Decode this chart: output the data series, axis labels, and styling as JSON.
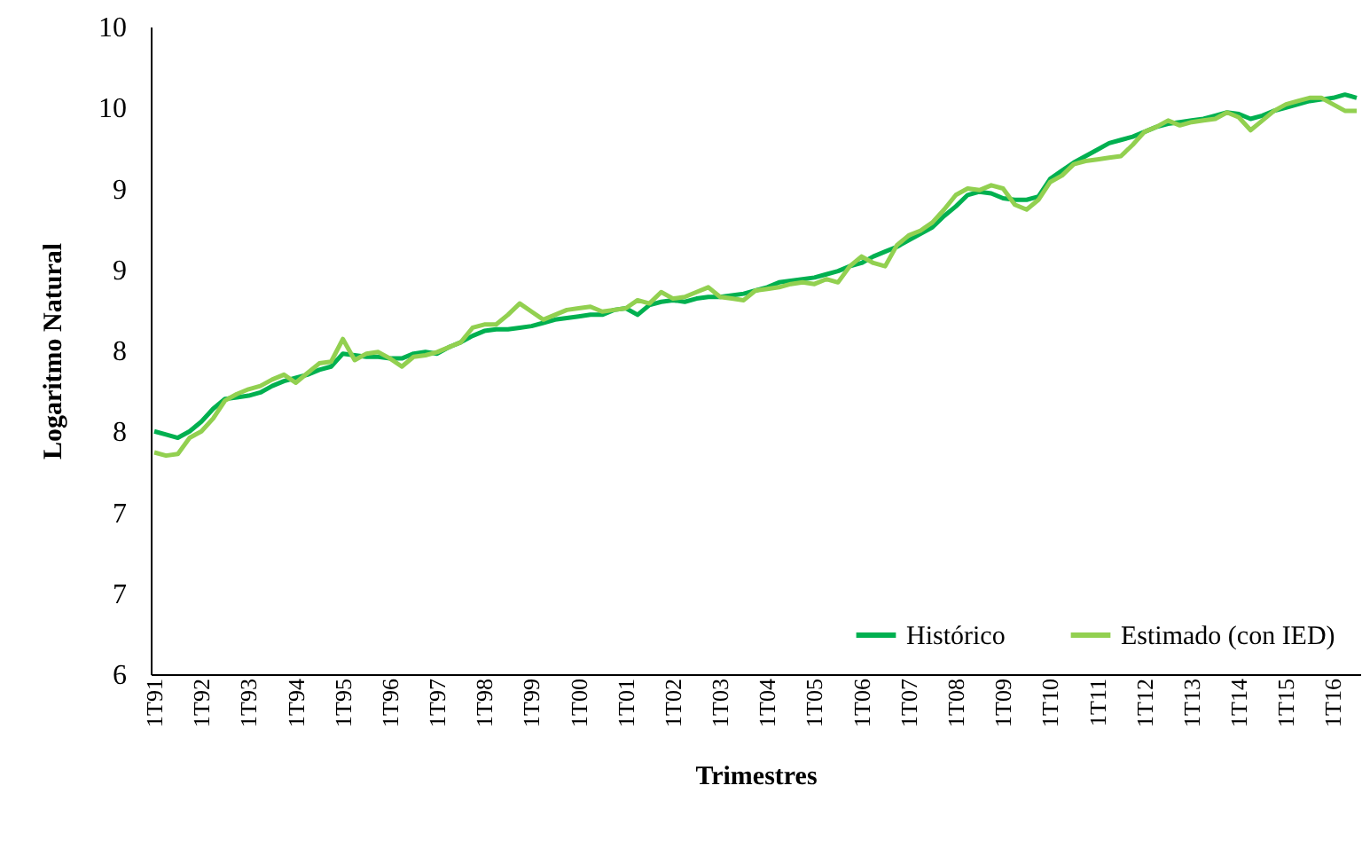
{
  "chart_data": {
    "type": "line",
    "xlabel": "Trimestres",
    "ylabel": "Logaritmo Natural",
    "categories": [
      "1T91",
      null,
      null,
      null,
      "1T92",
      null,
      null,
      null,
      "1T93",
      null,
      null,
      null,
      "1T94",
      null,
      null,
      null,
      "1T95",
      null,
      null,
      null,
      "1T96",
      null,
      null,
      null,
      "1T97",
      null,
      null,
      null,
      "1T98",
      null,
      null,
      null,
      "1T99",
      null,
      null,
      null,
      "1T00",
      null,
      null,
      null,
      "1T01",
      null,
      null,
      null,
      "1T02",
      null,
      null,
      null,
      "1T03",
      null,
      null,
      null,
      "1T04",
      null,
      null,
      null,
      "1T05",
      null,
      null,
      null,
      "1T06",
      null,
      null,
      null,
      "1T07",
      null,
      null,
      null,
      "1T08",
      null,
      null,
      null,
      "1T09",
      null,
      null,
      null,
      "1T10",
      null,
      null,
      null,
      "1T11",
      null,
      null,
      null,
      "1T12",
      null,
      null,
      null,
      "1T13",
      null,
      null,
      null,
      "1T14",
      null,
      null,
      null,
      "1T15",
      null,
      null,
      null,
      "1T16",
      null,
      null
    ],
    "series": [
      {
        "name": "Histórico",
        "color": "#00b050",
        "values": [
          7.5,
          7.48,
          7.46,
          7.5,
          7.56,
          7.64,
          7.7,
          7.71,
          7.72,
          7.74,
          7.78,
          7.81,
          7.83,
          7.85,
          7.88,
          7.9,
          7.98,
          7.97,
          7.96,
          7.96,
          7.95,
          7.95,
          7.98,
          7.99,
          7.98,
          8.02,
          8.05,
          8.09,
          8.12,
          8.13,
          8.13,
          8.14,
          8.15,
          8.17,
          8.19,
          8.2,
          8.21,
          8.22,
          8.22,
          8.25,
          8.26,
          8.22,
          8.28,
          8.3,
          8.31,
          8.3,
          8.32,
          8.33,
          8.33,
          8.34,
          8.35,
          8.37,
          8.39,
          8.42,
          8.43,
          8.44,
          8.45,
          8.47,
          8.49,
          8.52,
          8.54,
          8.58,
          8.61,
          8.64,
          8.68,
          8.72,
          8.76,
          8.83,
          8.89,
          8.96,
          8.98,
          8.97,
          8.94,
          8.93,
          8.93,
          8.95,
          9.06,
          9.11,
          9.16,
          9.2,
          9.24,
          9.28,
          9.3,
          9.32,
          9.35,
          9.38,
          9.4,
          9.41,
          9.42,
          9.43,
          9.45,
          9.47,
          9.46,
          9.43,
          9.45,
          9.48,
          9.5,
          9.52,
          9.54,
          9.55,
          9.56,
          9.58,
          9.56
        ]
      },
      {
        "name": "Estimado (con IED)",
        "color": "#92d050",
        "values": [
          7.37,
          7.35,
          7.36,
          7.46,
          7.5,
          7.58,
          7.69,
          7.73,
          7.76,
          7.78,
          7.82,
          7.85,
          7.8,
          7.86,
          7.92,
          7.93,
          8.07,
          7.94,
          7.98,
          7.99,
          7.95,
          7.9,
          7.96,
          7.97,
          7.99,
          8.02,
          8.05,
          8.14,
          8.16,
          8.16,
          8.22,
          8.29,
          8.24,
          8.19,
          8.22,
          8.25,
          8.26,
          8.27,
          8.24,
          8.25,
          8.26,
          8.31,
          8.29,
          8.36,
          8.32,
          8.33,
          8.36,
          8.39,
          8.33,
          8.32,
          8.31,
          8.37,
          8.38,
          8.39,
          8.41,
          8.42,
          8.41,
          8.44,
          8.42,
          8.52,
          8.58,
          8.54,
          8.52,
          8.65,
          8.71,
          8.74,
          8.79,
          8.87,
          8.96,
          9.0,
          8.99,
          9.02,
          9.0,
          8.9,
          8.87,
          8.93,
          9.04,
          9.08,
          9.15,
          9.17,
          9.18,
          9.19,
          9.2,
          9.27,
          9.35,
          9.38,
          9.42,
          9.39,
          9.41,
          9.42,
          9.43,
          9.47,
          9.44,
          9.36,
          9.42,
          9.48,
          9.52,
          9.54,
          9.56,
          9.56,
          9.52,
          9.48,
          9.48
        ]
      }
    ],
    "ylim": [
      6,
      10
    ],
    "yticks": [
      6,
      {
        "value": 6.5,
        "label": "7"
      },
      7,
      {
        "value": 7.5,
        "label": "8"
      },
      8,
      {
        "value": 8.5,
        "label": "9"
      },
      9,
      {
        "value": 9.5,
        "label": "10"
      },
      10
    ],
    "grid": false,
    "legend": "bottom right",
    "marker": "none",
    "line_style": "solid"
  }
}
